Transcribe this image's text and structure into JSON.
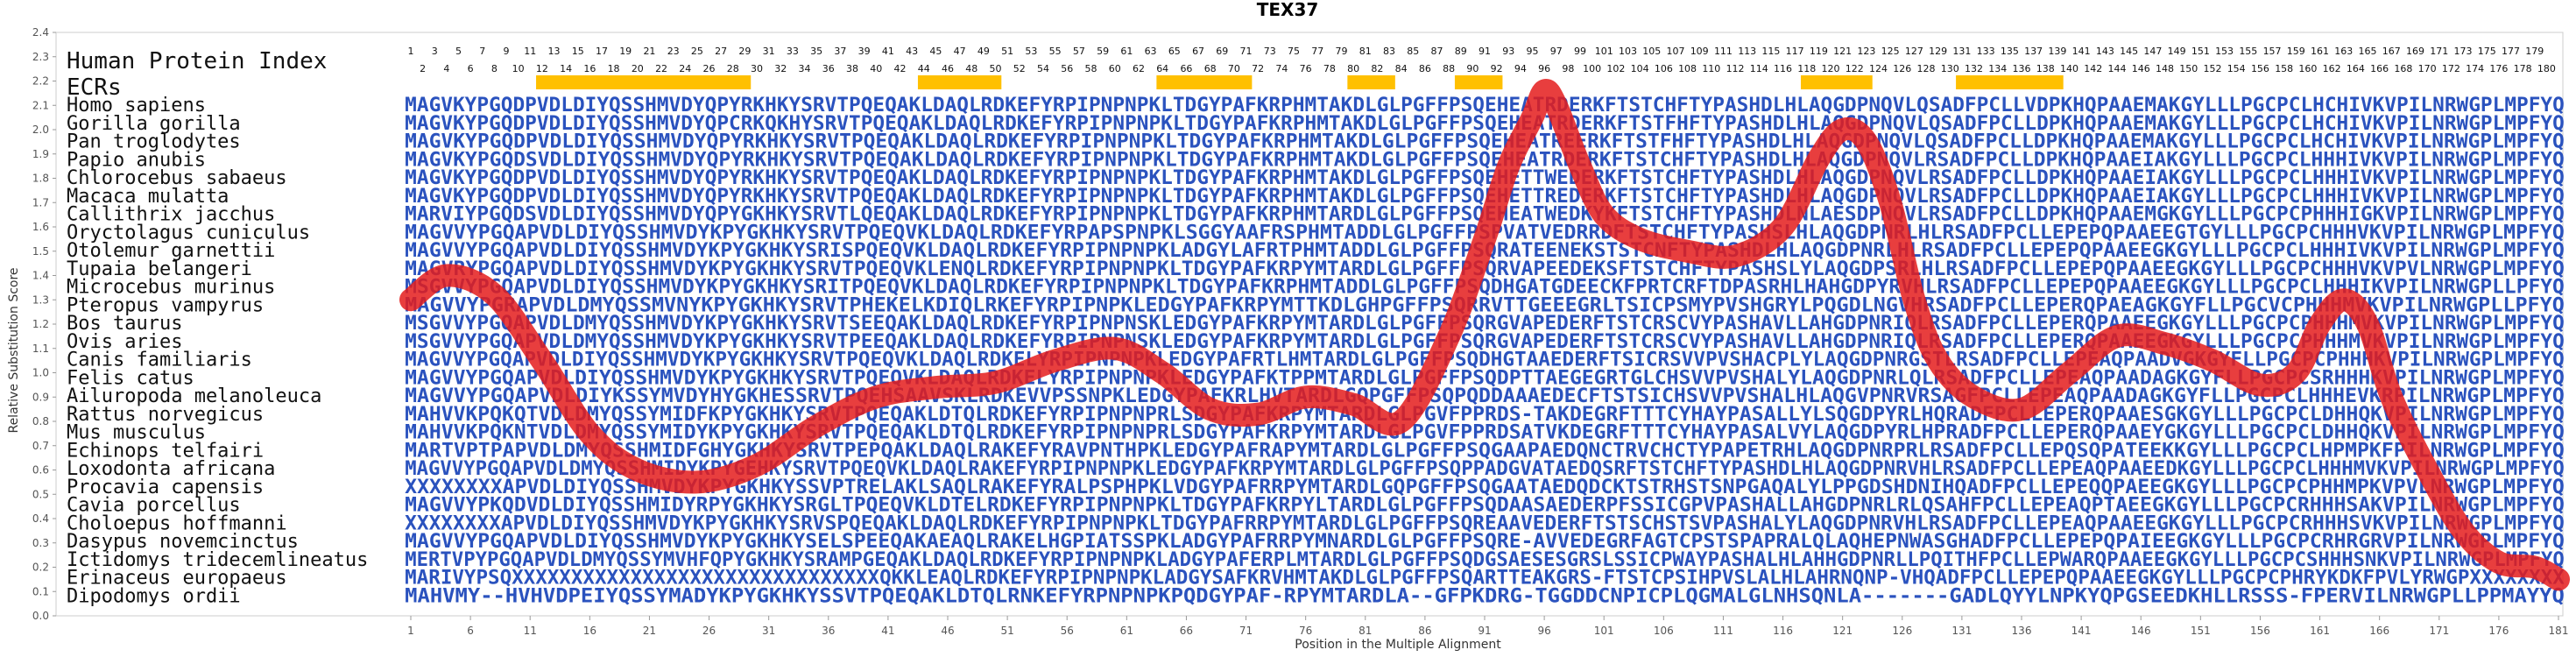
{
  "chart_data": {
    "type": "line",
    "title": "TEX37",
    "xlabel": "Position in the Multiple Alignment",
    "ylabel": "Relative Substitution Score",
    "xlim": [
      1,
      181
    ],
    "ylim": [
      0.0,
      2.4
    ],
    "y_ticks": [
      "0.0",
      "0.1",
      "0.2",
      "0.3",
      "0.4",
      "0.5",
      "0.6",
      "0.7",
      "0.8",
      "0.9",
      "1.0",
      "1.1",
      "1.2",
      "1.3",
      "1.4",
      "1.5",
      "1.6",
      "1.7",
      "1.8",
      "1.9",
      "2.0",
      "2.1",
      "2.2",
      "2.3",
      "2.4"
    ],
    "x_ticks": [
      "1",
      "6",
      "11",
      "16",
      "21",
      "26",
      "31",
      "36",
      "41",
      "46",
      "51",
      "56",
      "61",
      "66",
      "71",
      "76",
      "81",
      "86",
      "91",
      "96",
      "101",
      "106",
      "111",
      "116",
      "121",
      "126",
      "131",
      "136",
      "141",
      "146",
      "151",
      "156",
      "161",
      "166",
      "171",
      "176",
      "181"
    ],
    "header_labels": [
      "Human Protein Index",
      "ECRs"
    ],
    "ecr_segments": [
      [
        12,
        29
      ],
      [
        44,
        50
      ],
      [
        64,
        71
      ],
      [
        80,
        83
      ],
      [
        89,
        92
      ],
      [
        118,
        123
      ],
      [
        131,
        139
      ]
    ],
    "series_color": "#e41c1c",
    "sequence_color": "#2a52be",
    "highlight_color": "#ffc000",
    "curve": {
      "x": [
        1,
        4,
        8,
        12,
        16,
        20,
        25,
        30,
        35,
        40,
        45,
        50,
        55,
        60,
        64,
        68,
        72,
        76,
        80,
        84,
        88,
        91,
        93,
        95,
        96,
        97,
        99,
        101,
        104,
        108,
        112,
        116,
        119,
        121,
        123,
        125,
        127,
        129,
        132,
        136,
        140,
        144,
        148,
        152,
        156,
        159,
        161,
        163,
        165,
        167,
        170,
        173,
        176,
        179,
        181
      ],
      "y": [
        1.3,
        1.4,
        1.32,
        1.05,
        0.75,
        0.6,
        0.55,
        0.62,
        0.78,
        0.9,
        0.94,
        0.96,
        1.05,
        1.1,
        1.0,
        0.85,
        0.83,
        0.9,
        0.87,
        0.8,
        1.15,
        1.55,
        1.85,
        2.05,
        2.16,
        2.1,
        1.85,
        1.65,
        1.55,
        1.5,
        1.48,
        1.6,
        1.88,
        2.0,
        1.95,
        1.7,
        1.3,
        1.05,
        0.9,
        0.85,
        1.0,
        1.15,
        1.12,
        1.05,
        0.95,
        1.0,
        1.2,
        1.3,
        1.2,
        0.9,
        0.6,
        0.35,
        0.22,
        0.2,
        0.15
      ]
    },
    "species": [
      {
        "name": "Homo sapiens",
        "seq": "MAGVKYPGQDPVDLDIYQSSHMVDYQPYRKHKYSRVTPQEQAKLDAQLRDKEFYRPIPNPNPKLTDGYPAFKRPHMTAKDLGLPGFFPSQEHEATRDERKFTSTCHFTYPASHDLHLAQGDPNQVLQSADFPCLLVDPKHQPAAEMAKGYLLLPGCPCLHCHIVKVPILNRWGPLMPFYQ"
      },
      {
        "name": "Gorilla gorilla",
        "seq": "MAGVKYPGQDPVDLDIYQSSHMVDYQPCRKQKHYSRVTPQEQAKLDAQLRDKEFYRPIPNPNPKLTDGYPAFKRPHMTAKDLGLPGFFPSQEHEATRDERKFTSTFHFTYPASHDLHLAQGDPNQVLQSADFPCLLDPKHQPAAEMAKGYLLLPGCPCLHCHIVKVPILNRWGPLMPFYQ"
      },
      {
        "name": "Pan troglodytes",
        "seq": "MAGVKYPGQDPVDLDIYQSSHMVDYQPYRKHKYSRVTPQEQAKLDAQLRDKEFYRPIPNPNPKLTDGYPAFKRPHMTAKDLGLPGFFPSQEHEATREERKFTSTFHFTYPASHDLHLAQGDPNQVLQSADFPCLLDPKHQPAAEMAKGYLLLPGCPCLHCHIVKVPILNRWGPLMPFYQ"
      },
      {
        "name": "Papio anubis",
        "seq": "MAGVKYPGQDSVDLDIYQSSHMVDYQPYRKHKYSRVTPQEQAKLDAQLRDKEFYRPIPNPNPKLTDGYPAFKRPHMTAKDLGLPGFFPSQEHEATRDERKFTSTCHFTYPASHDLHLAQGDPNQVLRSADFPCLLDPKHQPAAEIAKGYLLLPGCPCLHHHIVKVPILNRWGPLMPFYQ"
      },
      {
        "name": "Chlorocebus sabaeus",
        "seq": "MAGVKYPGQDPVDLDIYQSSHMVDYQPYRKHKYSRVTPQEQAKLDAQLRDKEFYRPIPNPNPKLTDGYPAFKRPHMTAKDLGLPGFFPSQEHETTWEDERKFTSTCHFTYPASHDLHLAQGDPNQVLRSADFPCLLDPKHQPAAEIAKGYLLLPGCPCLHHHIVKVPILNRWGPLMPFYQ"
      },
      {
        "name": "Macaca mulatta",
        "seq": "MAGVKYPGQDPVDLDIYQSSHMVDYQPYRKHKYSRVTPQEQAKLDAQLRDKEFYRPIPNPNPKLTDGYPAFKRPHMTAKDLGLPGFFPSQEHETTREDERKFTSTCHFTYPASHDLHLAQGDPNQVLRSADFPCLLDPKHQPAAEIAKGYLLLPGCPCLHHHIVKVPILNRWGPLMPFYQ"
      },
      {
        "name": "Callithrix jacchus",
        "seq": "MARVIYPGQDSVDLDIYQSSHMVDYQPYGKHKYSRVTLQEQAKLDAQLRDKEFYRPIPNPNPKLTDGYPAFKRPHMTARDLGLPGFFPSQEHEATWEDKYKFTSTCHFTYPASHDLNLAESDPNQVLRSADFPCLLDPKHQPAAEMGKGYLLLPGCPCPHHHIGKVPILNRWGPLMPFYQ"
      },
      {
        "name": "Oryctolagus cuniculus",
        "seq": "MAGVVYPGQAPVDLDIYQSSHMVDYKPYGKHKYSRVTPQEQVKLDAQLRDKEFYRPAPSPNPKLSGGYAAFRSPHMTADDLGLPGFFPSPVATVEDRRDFTSTCHFTYPASHSLHLAQGDPNRLHLRSADFPCLLEPEPQPAAEEGTGYLLLPGCPCHHHVKVPILNRWGPLMPFYQ"
      },
      {
        "name": "Otolemur garnettii",
        "seq": "MAGVVYPGQAPVDLDIYQSSHMVDYKPYGKHKYSRISPQEQVKLDAQLRDKEFYRPIPNPNPKLADGYLAFRTPHMTADDLGLPGFFPSQRATEENEKSTSTCNFTYPASHDLHLAQGDPNRLHLRSADFPCLLEPEPQPAAEEGKGYLLLPGCPCLHHHIVKVPILNRWGPLMPFYQ"
      },
      {
        "name": "Tupaia belangeri",
        "seq": "MAGVRYPGQAPVDLDIYQSSHMVDYKPYGKHKYSRVTPQEQVKLENQLRDKEFYRPIPNPNPKLTDGYPAFKRPYMTARDLGLPGFFPSQRVAPEEDEKSFTSTCHFTYPASHSLYLAQGDPSRLHLRSADFPCLLEPEPQPAAEEGKGYLLLPGCPCHHHVKVPVLNRWGPLMPFYQ"
      },
      {
        "name": "Microcebus murinus",
        "seq": "MSGVVYPGQAPVDLDIYQSSHMVDYKPYGKHKYSRITPQEQVKLDAQLRDKEFYRPIPNPNPKLTDGYPAFKRPHMTADDLGLPGFFPSQDHGATGDEECKFPRTCRFTDPASRHLHAHGDPYRVHLRSADFPCLLEPEPQPAAEEGKGYLLLPGCPCLHHHIKVPILNRWGPLLPFYQ"
      },
      {
        "name": "Pteropus vampyrus",
        "seq": "MAGVVYPGRAPVDLDMYQSSMVNYKPYGKHKYSRVTPHEKELKDIQLRKEFYRPIPNPKLEDGYPAFKRPYMTTKDLGHPGFFPSQRRVTTGEEEGRLTSICPSMYPVSHGRYLPQGDLNGVHRSADFPCLLEPERQPAEAGKGYFLLPGCVCPHHHMVKVPILNRWGPLLPFYQ"
      },
      {
        "name": "Bos taurus",
        "seq": "MSGVVYPGQAPVDLDMYQSSHMVDYKPYGKHKYSRVTSEEQAKLDAQLRDKEFYRPIPNPNSKLEDGYPAFKRPYMTARDLGLPGFFPSQRGVAPEDERFTSTCRSCVYPASHAVLLAHGDPNRIQLRSADFPCLLEPERQPAAEEGKGYLLLPGCPCPHHHMVKVPILNRWGPLMPFYQ"
      },
      {
        "name": "Ovis aries",
        "seq": "MSGVVYPGQAPVDLDMYQSSHMVDYKPYGKHKYSRVTPEEQAKLDAQLRDKEFYRPIPNPNSKLEDGYPAFKRPYMTARDLGLPGFFPSQRGVAPEDERFTSTCRSCVYPASHAVLLAHGDPNRIQLRSADFPCLLEPERQPAAEEGKGYLLLPGCPCPHHHMVKVPILNRWGPLMPFYQ"
      },
      {
        "name": "Canis familiaris",
        "seq": "MAGVVYPGQAPVDLDIYQSSHMVDYKPYGKHKYSRVTPQEQVKLDAQLRDKELYRPIPNPNPKLEDGYPAFRTLHMTARDLGLPGFFPSQDHGTAAEDERFTSICRSVVPVSHACPLYLAQGDPNRGSTLRSADFPCLLEPEAQPAADVGKGYFLLPGCPCPHHHKVPILNRWGPLMPFYQ"
      },
      {
        "name": "Felis catus",
        "seq": "MAGVVYPGQAPVDLDIYQSSHMVDYKPYGKHKYSRVTPQEQVKLDAQLRDKELYRPIPNPNPKLEDGYPAFKTPPMTARDLGLPGFFPSQDPTTAEGEGRTGLCHSVVPVSHALYLAQGDPNRLQLRSADFPCLLEPEAQPAADAGKGYFLLPGCPCSRHHHKVPILNRWGPLMPFYQ"
      },
      {
        "name": "Ailuropoda melanoleuca",
        "seq": "MAGVVYPGQAPVDLDIYKSSYMVDYHYGKHESSRVTPQEHSAAVSKLRDKEVVPSSNPKLEDGYPAFKRLHVTARDLGQPGFFPSQPQDDAAAEDECFTSTSICHSVVPVSHALHLAQGVPNRVRSAGFPCLLEPEAQPAADAGKGYFLLPGCPCLHHHEVKRPILNRWGPLMPFYQ"
      },
      {
        "name": "Rattus norvegicus",
        "seq": "MAHVVKPQKQTVDLDMYQSSYMIDFKPYGKHKYSRVTPQEQAKLDTQLRDKEFYRPIPNPNPRLSDGYPAFKRPYMTARDLGLPGVFPPRDS-TAKDEGRFTTTCYHAYPASALLYLSQGDPYRLHQRADFPCLLEPERQPAAESGKGYLLLPGCPCLDHHQKVPILNRWGPLMPFYQ"
      },
      {
        "name": "Mus musculus",
        "seq": "MAHVVKPQKNTVDLDMYQSSYMIDYKPYGKHKYSRVTPQEQAKLDTQLRDKEFYRPIPNPNPRLSDGYPAFKRPYMTARDLGLPGVFPPRDSATVKDEGRFTTTCYHAYPASALVYLAQGDPYRLHPRADFPCLLEPERQPAAEYGKGYLLLPGCPCLDHHQKVPILNRWGPLMPFYQ"
      },
      {
        "name": "Echinops telfairi",
        "seq": "MARTVPTPAPVDLDMYQSSHMIDFGHYGKHKYSRVTPEPQAKLDAQLRAKEFYRAVPNTHPKLEDGYPAFRAPYMTARDLGLPGFFPSQGAAPAEDQNCTRVCHCTYPAPETRHLAQGDPNRPRLRSADFPCLLEPQSQPATEEKKGYLLLPGCPCLHPMPKFPILNRWGPLMPFYQ"
      },
      {
        "name": "Loxodonta africana",
        "seq": "MAGVVYPGQAPVDLDMYQSSHMIDYKPYGEHKYSRVTPQEQVKLDAQLRAKEFYRPIPNPNPKLEDGYPAFKRPYMTARDLGLPGFFPSQPPADGVATAEDQSRFTSTCHFTYPASHDLHLAQGDPNRVHLRSADFPCLLEPEAQPAAEEDKGYLLLPGCPCLHHHMVKVPILNRWGPLMPFYQ"
      },
      {
        "name": "Procavia capensis",
        "seq": "XXXXXXXXAPVDLDIYQSSHMVDYKPYGKHKYSSVPTRELAKLSAQLRAKEFYRALPSPHPKLVDGYPAFRRPYMTARDLGQPGFFPSQGAATAEDQDCKTSTRHSTSNPGAQALYLPPGDSHDNIHQADFPCLLEPEQQPAEEGKGYLLLPGCPCPHHMPKVPVLNRWGPLMPFYQ"
      },
      {
        "name": "Cavia porcellus",
        "seq": "MAGVVYPKQDVDLDIYQSSHMIDYRPYGKHKYSRGLTPQEQVKLDTELRDKEFYRPIPNPNPKLTDGYPAFKRPYLTARDLGLPGFFPSQDAASAEDERPFSSICGPVPASHALLAHGDPNRLRLQSAHFPCLLEPEAQPTAEEGKGYLLLPGCPCRHHHSAKVPILNRWGPLMPFYQ"
      },
      {
        "name": "Choloepus hoffmanni",
        "seq": "XXXXXXXXAPVDLDIYQSSHMVDYKPYGKHKYSRVSPQEQAKLDAQLRDKEFYRPIPNPNPKLTDGYPAFRRPYMTARDLGLPGFFPSQREAAVEDERFTSTSCHSTSVPASHALYLAQGDPNRVHLRSADFPCLLEPEAQPAAEEGKGYLLLPGCPCRHHHSVKVPILNRWGPLMPFYQ"
      },
      {
        "name": "Dasypus novemcinctus",
        "seq": "MAGVVYPGQAPVDLDIYQSSHMVDYKPYGKHKYSELSPEEQAKAEAQLRAKELHGPIATSSPKLADGYPAFRRPYMNARDLGLPGFFPSQRE-AVVEDEGRFAGTCPSTSPAPRALQLAQHEPNWASGHADFPCLLEPEPQPAIEEGKGYLLLPGCPCRHRGRVPILNRWGPLMPFYQ"
      },
      {
        "name": "Ictidomys tridecemlineatus",
        "seq": "MERTVPYPGQAPVDLDMYQSSYMVHFQPYGKHKYSRAMPGEQAKLDAQLRDKEFYRPIPNPNPKLADGYPAFERPLMTARDLGLPGFFPSQDGSAESESGRSLSSICPWAYPASHALHLAHHGDPNRLLPQITHFPCLLEPWARQPAAEEGKGYLLLPGCPCSHHHSNKVPILNRWGPLMPFYQ"
      },
      {
        "name": "Erinaceus europaeus",
        "seq": "MARIVYPSQXXXXXXXXXXXXXXXXXXXXXXXXXXXXXXXQKKLEAQLRDKEFYRPIPNPNPKLADGYSAFKRVHMTAKDLGLPGFFPSQARTTEAKGRS-FTSTCPSIHPVSLALHLAHRNQNP-VHQADFPCLLEPEPQPAAEEGKGYLLLPGCPCPHRYKDKFPVLYRWGPXXXXXXXX"
      },
      {
        "name": "Dipodomys ordii",
        "seq": "MAHVMY--HVHVDPEIYQSSYMADYKPYGKHKYSSVTPQEQAKLDTQLRNKEFYRPNPNPKPQDGYPAF-RPYMTARDLA--GFPKDRG-TGGDDCNPICPLQGMALGLNHSQNLA-------GADLQYYLNPKYQPGSEEDKHLLRSSS-FPERVILNRWGPLLPPMAYYQ"
      }
    ]
  }
}
